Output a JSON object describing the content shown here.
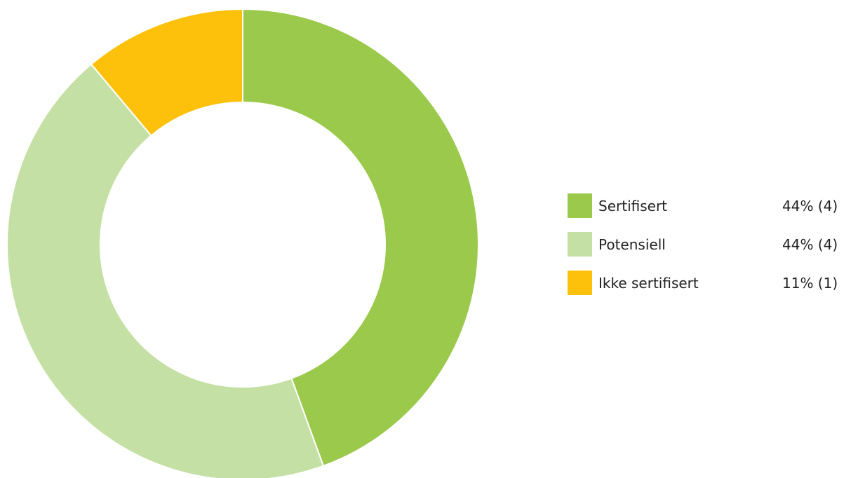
{
  "chart_data": {
    "type": "pie",
    "donut": true,
    "categories": [
      "Sertifisert",
      "Potensiell",
      "Ikke sertifisert"
    ],
    "values": [
      4,
      4,
      1
    ],
    "percent_labels": [
      "44% (4)",
      "44% (4)",
      "11% (1)"
    ],
    "colors": [
      "#9bc94b",
      "#c5e0a5",
      "#fdc10b"
    ],
    "legend_position": "right",
    "start": "top",
    "direction": "clockwise"
  }
}
